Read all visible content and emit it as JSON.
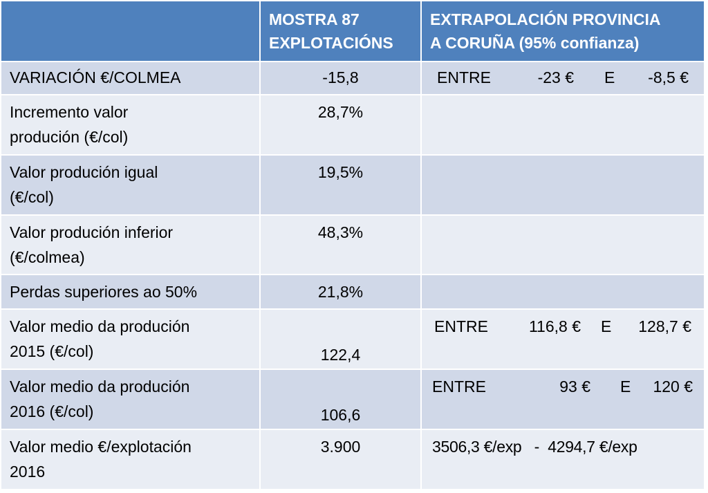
{
  "header": {
    "col1": "",
    "col2_line1": "MOSTRA 87",
    "col2_line2": "EXPLOTACIÓNS",
    "col3_line1": "EXTRAPOLACIÓN PROVINCIA",
    "col3_line2": "A CORUÑA (95% confianza)"
  },
  "rows": [
    {
      "label": "VARIACIÓN €/COLMEA",
      "sample": "-15,8",
      "range": {
        "word": "ENTRE",
        "low": "-23 €",
        "and": "E",
        "high": "-8,5 €"
      }
    },
    {
      "label1": "Incremento valor",
      "label2": "produción (€/col)",
      "sample": "28,7%"
    },
    {
      "label1": "Valor produción igual",
      "label2": "(€/col)",
      "sample": "19,5%"
    },
    {
      "label1": "Valor produción inferior",
      "label2": "(€/colmea)",
      "sample": "48,3%"
    },
    {
      "label": "Perdas superiores ao 50%",
      "sample": "21,8%"
    },
    {
      "label1": "Valor medio da produción",
      "label2": "2015 (€/col)",
      "sample": "122,4",
      "range": {
        "word": "ENTRE",
        "low": "116,8 €",
        "and": "E",
        "high": "128,7 €"
      }
    },
    {
      "label1": "Valor medio da produción",
      "label2": "2016 (€/col)",
      "sample": "106,6",
      "range": {
        "word": "ENTRE",
        "low": "93 €",
        "and": "E",
        "high": "120 €"
      }
    },
    {
      "label1": "Valor medio €/explotación",
      "label2": "2016",
      "sample": "3.900",
      "range_text": "3506,3 €/exp   -  4294,7 €/exp"
    }
  ],
  "colors": {
    "header": "#4F81BD",
    "row_dark": "#D0D8E8",
    "row_light": "#E9EDF4"
  }
}
